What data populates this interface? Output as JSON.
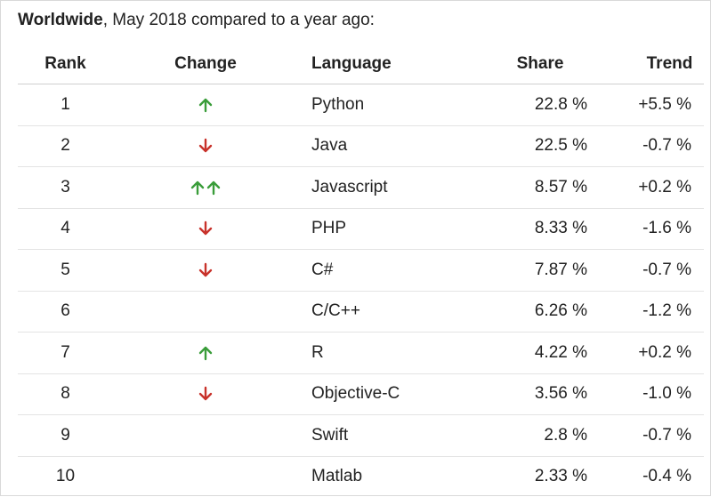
{
  "caption": {
    "bold": "Worldwide",
    "rest": ", May 2018 compared to a year ago:"
  },
  "columns": {
    "rank": "Rank",
    "change": "Change",
    "language": "Language",
    "share": "Share",
    "trend": "Trend"
  },
  "colors": {
    "up": "#3a9d3a",
    "down": "#c8322b"
  },
  "rows": [
    {
      "rank": "1",
      "change": "up",
      "change_icon": "arrow-up-icon",
      "language": "Python",
      "share": "22.8 %",
      "trend": "+5.5 %"
    },
    {
      "rank": "2",
      "change": "down",
      "change_icon": "arrow-down-icon",
      "language": "Java",
      "share": "22.5 %",
      "trend": "-0.7 %"
    },
    {
      "rank": "3",
      "change": "up-up",
      "change_icon": "double-arrow-up-icon",
      "language": "Javascript",
      "share": "8.57 %",
      "trend": "+0.2 %"
    },
    {
      "rank": "4",
      "change": "down",
      "change_icon": "arrow-down-icon",
      "language": "PHP",
      "share": "8.33 %",
      "trend": "-1.6 %"
    },
    {
      "rank": "5",
      "change": "down",
      "change_icon": "arrow-down-icon",
      "language": "C#",
      "share": "7.87 %",
      "trend": "-0.7 %"
    },
    {
      "rank": "6",
      "change": "none",
      "change_icon": "",
      "language": "C/C++",
      "share": "6.26 %",
      "trend": "-1.2 %"
    },
    {
      "rank": "7",
      "change": "up",
      "change_icon": "arrow-up-icon",
      "language": "R",
      "share": "4.22 %",
      "trend": "+0.2 %"
    },
    {
      "rank": "8",
      "change": "down",
      "change_icon": "arrow-down-icon",
      "language": "Objective-C",
      "share": "3.56 %",
      "trend": "-1.0 %"
    },
    {
      "rank": "9",
      "change": "none",
      "change_icon": "",
      "language": "Swift",
      "share": "2.8 %",
      "trend": "-0.7 %"
    },
    {
      "rank": "10",
      "change": "none",
      "change_icon": "",
      "language": "Matlab",
      "share": "2.33 %",
      "trend": "-0.4 %"
    }
  ]
}
